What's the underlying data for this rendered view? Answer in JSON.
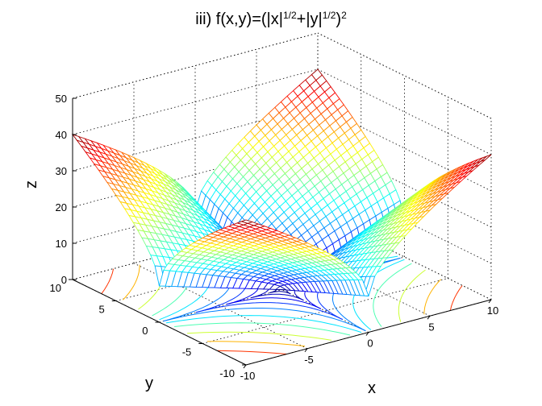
{
  "chart_data": {
    "type": "surface",
    "function": "(|x|^(1/2)+|y|^(1/2))^2",
    "title_parts": [
      "iii)  f(x,y)=(|x|",
      "1/2",
      "+|y|",
      "1/2",
      ")",
      "2"
    ],
    "xlabel": "x",
    "ylabel": "y",
    "zlabel": "z",
    "xlim": [
      -10,
      10
    ],
    "ylim": [
      -10,
      10
    ],
    "zlim": [
      0,
      50
    ],
    "x_ticks": [
      -10,
      -5,
      0,
      5,
      10
    ],
    "y_ticks": [
      -10,
      -5,
      0,
      5,
      10
    ],
    "z_ticks": [
      0,
      10,
      20,
      30,
      40,
      50
    ],
    "mesh_points_per_axis": 41,
    "contour_levels": [
      1,
      2.5,
      4.5,
      7,
      10,
      14,
      18,
      23,
      28,
      33,
      38
    ],
    "grid": true,
    "colormap": "jet",
    "values": {
      "corners": {
        "(-10,-10)": 40,
        "(10,-10)": 40,
        "(-10,10)": 40,
        "(10,10)": 40
      },
      "origin": 0,
      "max": 40
    }
  }
}
